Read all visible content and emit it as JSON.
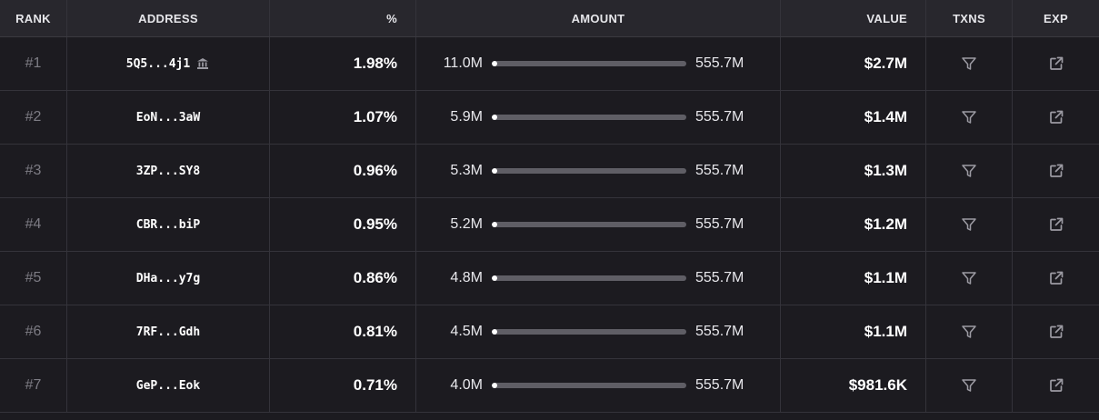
{
  "headers": {
    "rank": "RANK",
    "address": "ADDRESS",
    "percent": "%",
    "amount": "AMOUNT",
    "value": "VALUE",
    "txns": "TXNS",
    "exp": "EXP"
  },
  "supply_label": "555.7M",
  "icons": {
    "bank": "bank-icon",
    "txns": "filter-icon",
    "exp": "external-link-icon"
  },
  "colors": {
    "background": "#1c1b20",
    "header": "#28272d",
    "bar_track": "#5f5e65",
    "bar_fill": "#ffffff"
  },
  "rows": [
    {
      "rank": "#1",
      "address": "5Q5...4j1",
      "exchange": true,
      "percent": "1.98%",
      "amount": "11.0M",
      "share": 0.0198,
      "value": "$2.7M"
    },
    {
      "rank": "#2",
      "address": "EoN...3aW",
      "exchange": false,
      "percent": "1.07%",
      "amount": "5.9M",
      "share": 0.0107,
      "value": "$1.4M"
    },
    {
      "rank": "#3",
      "address": "3ZP...SY8",
      "exchange": false,
      "percent": "0.96%",
      "amount": "5.3M",
      "share": 0.0096,
      "value": "$1.3M"
    },
    {
      "rank": "#4",
      "address": "CBR...biP",
      "exchange": false,
      "percent": "0.95%",
      "amount": "5.2M",
      "share": 0.0095,
      "value": "$1.2M"
    },
    {
      "rank": "#5",
      "address": "DHa...y7g",
      "exchange": false,
      "percent": "0.86%",
      "amount": "4.8M",
      "share": 0.0086,
      "value": "$1.1M"
    },
    {
      "rank": "#6",
      "address": "7RF...Gdh",
      "exchange": false,
      "percent": "0.81%",
      "amount": "4.5M",
      "share": 0.0081,
      "value": "$1.1M"
    },
    {
      "rank": "#7",
      "address": "GeP...Eok",
      "exchange": false,
      "percent": "0.71%",
      "amount": "4.0M",
      "share": 0.0071,
      "value": "$981.6K"
    }
  ]
}
